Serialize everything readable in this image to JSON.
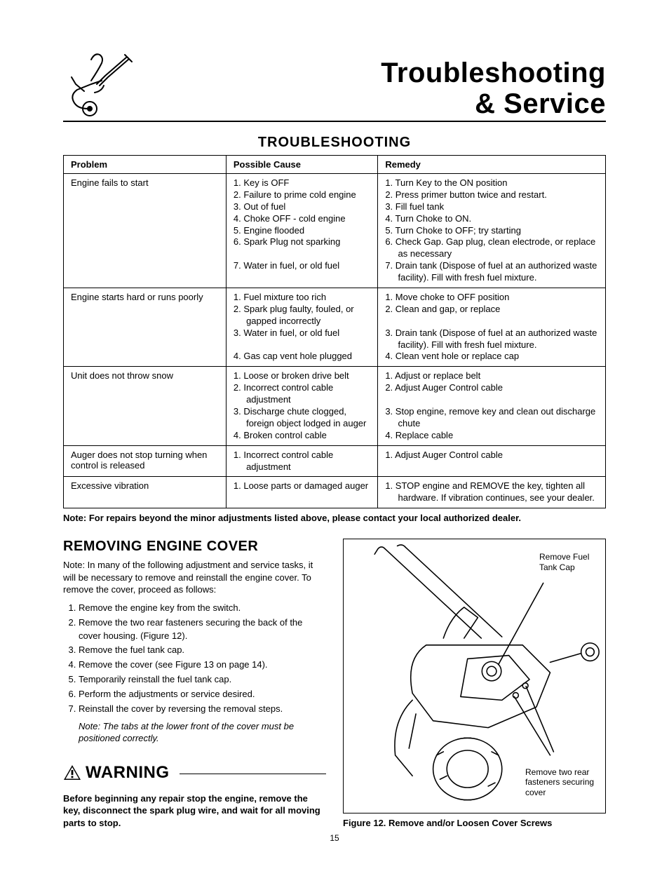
{
  "header": {
    "title_line1": "Troubleshooting",
    "title_line2": "& Service"
  },
  "section_title": "TROUBLESHOOTING",
  "table": {
    "columns": [
      "Problem",
      "Possible Cause",
      "Remedy"
    ],
    "rows": [
      {
        "problem": "Engine fails to start",
        "causes": [
          "1. Key is OFF",
          "2. Failure to prime cold engine",
          "3. Out of fuel",
          "4. Choke OFF - cold engine",
          "5. Engine flooded",
          "6. Spark Plug not sparking",
          "",
          "7. Water in fuel, or old fuel"
        ],
        "remedies": [
          "1. Turn Key to the ON position",
          "2. Press primer button twice and restart.",
          "3. Fill fuel tank",
          "4. Turn Choke to ON.",
          "5. Turn Choke to OFF; try starting",
          "6. Check Gap. Gap plug, clean electrode, or replace as necessary",
          "7. Drain tank (Dispose of fuel at an authorized waste facility). Fill with fresh fuel mixture."
        ]
      },
      {
        "problem": "Engine starts hard or runs poorly",
        "causes": [
          "1. Fuel mixture too rich",
          "2. Spark plug faulty, fouled, or gapped incorrectly",
          "3. Water in fuel, or old fuel",
          "",
          "4. Gas cap vent hole plugged"
        ],
        "remedies": [
          "1. Move choke to OFF position",
          "2. Clean and gap, or replace",
          "",
          "3. Drain tank (Dispose of fuel at an authorized waste facility). Fill with fresh fuel mixture.",
          "4. Clean vent hole or replace cap"
        ]
      },
      {
        "problem": "Unit does not throw snow",
        "causes": [
          "1. Loose or broken drive belt",
          "2. Incorrect control cable adjustment",
          "3. Discharge chute clogged, foreign object lodged in auger",
          "4. Broken control cable"
        ],
        "remedies": [
          "1. Adjust or replace belt",
          "2. Adjust Auger Control cable",
          "",
          "3. Stop engine, remove key and clean out discharge chute",
          "4. Replace cable"
        ]
      },
      {
        "problem": "Auger does not stop turning when control is released",
        "causes": [
          "1. Incorrect control cable adjustment"
        ],
        "remedies": [
          "1. Adjust Auger Control cable"
        ]
      },
      {
        "problem": "Excessive vibration",
        "causes": [
          "1. Loose parts or damaged auger"
        ],
        "remedies": [
          "1. STOP engine and REMOVE the key, tighten all hardware. If vibration continues, see your dealer."
        ]
      }
    ]
  },
  "table_note": "Note: For repairs beyond the minor adjustments listed above, please contact your local authorized dealer.",
  "removing": {
    "title": "REMOVING ENGINE COVER",
    "intro": "Note: In many of the following adjustment and service tasks, it will be necessary to remove and reinstall the engine cover.  To remove the cover, proceed as follows:",
    "steps": [
      "Remove the engine key from the switch.",
      "Remove the two rear fasteners securing the back of the cover housing. (Figure 12).",
      "Remove the fuel tank cap.",
      "Remove the cover (see Figure 13 on page 14).",
      "Temporarily reinstall the fuel tank cap.",
      "Perform the adjustments or service desired.",
      "Reinstall the cover by reversing the removal steps."
    ],
    "note_italic": "Note: The tabs at the lower front of the cover must be positioned correctly."
  },
  "warning": {
    "title": "WARNING",
    "body": "Before beginning any repair stop the engine, remove the key, disconnect the spark plug wire, and wait for all moving parts to stop."
  },
  "figure": {
    "caption": "Figure 12.  Remove and/or Loosen Cover Screws",
    "label_top": "Remove Fuel Tank Cap",
    "label_bottom": "Remove two rear fasteners securing cover"
  },
  "page_number": "15",
  "colors": {
    "text": "#000000",
    "background": "#ffffff",
    "border": "#000000"
  },
  "typography": {
    "header_title_fontsize": 40,
    "section_title_fontsize": 20,
    "body_fontsize": 13,
    "warning_title_fontsize": 24
  }
}
